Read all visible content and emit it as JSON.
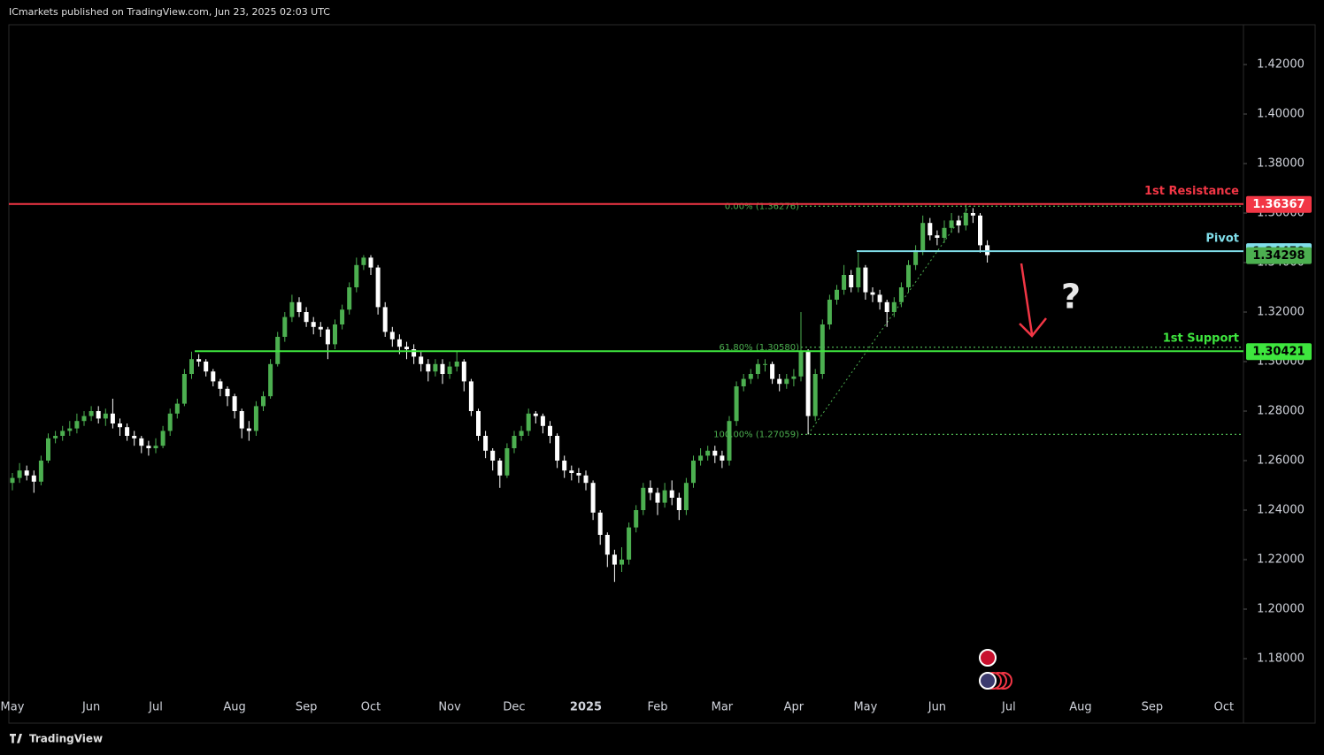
{
  "header_text": "ICmarkets published on TradingView.com, Jun 23, 2025 02:03 UTC",
  "footer_text": "TradingView",
  "chart_data": {
    "type": "candlestick",
    "up_color": "#4caf50",
    "down_color": "#ffffff",
    "ylim": [
      1.15393,
      1.43607
    ],
    "yticks": [
      {
        "value": 1.18,
        "label": "1.18000"
      },
      {
        "value": 1.2,
        "label": "1.20000"
      },
      {
        "value": 1.22,
        "label": "1.22000"
      },
      {
        "value": 1.24,
        "label": "1.24000"
      },
      {
        "value": 1.26,
        "label": "1.26000"
      },
      {
        "value": 1.28,
        "label": "1.28000"
      },
      {
        "value": 1.3,
        "label": "1.30000"
      },
      {
        "value": 1.32,
        "label": "1.32000"
      },
      {
        "value": 1.34,
        "label": "1.34000"
      },
      {
        "value": 1.36,
        "label": "1.36000"
      },
      {
        "value": 1.38,
        "label": "1.38000"
      },
      {
        "value": 1.4,
        "label": "1.40000"
      },
      {
        "value": 1.42,
        "label": "1.42000"
      }
    ],
    "categories": [
      "May",
      null,
      null,
      null,
      null,
      null,
      null,
      null,
      null,
      null,
      null,
      "Jun",
      null,
      null,
      null,
      null,
      null,
      null,
      null,
      null,
      "Jul",
      null,
      null,
      null,
      null,
      null,
      null,
      null,
      null,
      null,
      null,
      "Aug",
      null,
      null,
      null,
      null,
      null,
      null,
      null,
      null,
      null,
      "Sep",
      null,
      null,
      null,
      null,
      null,
      null,
      null,
      null,
      "Oct",
      null,
      null,
      null,
      null,
      null,
      null,
      null,
      null,
      null,
      null,
      "Nov",
      null,
      null,
      null,
      null,
      null,
      null,
      null,
      null,
      "Dec",
      null,
      null,
      null,
      null,
      null,
      null,
      null,
      null,
      null,
      "2025",
      null,
      null,
      null,
      null,
      null,
      null,
      null,
      null,
      null,
      "Feb",
      null,
      null,
      null,
      null,
      null,
      null,
      null,
      null,
      "Mar",
      null,
      null,
      null,
      null,
      null,
      null,
      null,
      null,
      null,
      "Apr",
      null,
      null,
      null,
      null,
      null,
      null,
      null,
      null,
      null,
      "May",
      null,
      null,
      null,
      null,
      null,
      null,
      null,
      null,
      null,
      "Jun",
      null,
      null,
      null,
      null,
      null,
      null,
      null,
      null,
      null,
      "Jul",
      null,
      null,
      null,
      null,
      null,
      null,
      null,
      null,
      null,
      "Aug",
      null,
      null,
      null,
      null,
      null,
      null,
      null,
      null,
      null,
      "Sep",
      null,
      null,
      null,
      null,
      null,
      null,
      null,
      null,
      null,
      "Oct"
    ],
    "open": [
      1.251,
      1.253,
      1.256,
      1.254,
      1.2515,
      1.26,
      1.269,
      1.27,
      1.272,
      1.273,
      1.276,
      1.278,
      1.28,
      1.277,
      1.279,
      1.275,
      1.2735,
      1.27,
      1.269,
      1.266,
      1.265,
      1.266,
      1.272,
      1.279,
      1.283,
      1.295,
      1.301,
      1.3,
      1.296,
      1.292,
      1.289,
      1.286,
      1.28,
      1.273,
      1.272,
      1.282,
      1.286,
      1.299,
      1.31,
      1.318,
      1.324,
      1.32,
      1.316,
      1.314,
      1.313,
      1.307,
      1.315,
      1.321,
      1.33,
      1.339,
      1.342,
      1.338,
      1.322,
      1.312,
      1.309,
      1.306,
      1.305,
      1.302,
      1.299,
      1.296,
      1.299,
      1.295,
      1.298,
      1.3,
      1.292,
      1.28,
      1.27,
      1.264,
      1.26,
      1.254,
      1.265,
      1.27,
      1.272,
      1.279,
      1.278,
      1.274,
      1.27,
      1.26,
      1.256,
      1.255,
      1.254,
      1.251,
      1.239,
      1.23,
      1.222,
      1.218,
      1.22,
      1.233,
      1.24,
      1.249,
      1.247,
      1.243,
      1.248,
      1.245,
      1.24,
      1.251,
      1.26,
      1.262,
      1.264,
      1.262,
      1.26,
      1.276,
      1.29,
      1.293,
      1.295,
      1.299,
      1.299,
      1.293,
      1.291,
      1.293,
      1.294,
      1.304,
      1.278,
      1.295,
      1.315,
      1.325,
      1.329,
      1.335,
      1.33,
      1.338,
      1.328,
      1.327,
      1.324,
      1.32,
      1.324,
      1.33,
      1.339,
      1.345,
      1.356,
      1.351,
      1.35,
      1.354,
      1.357,
      1.355,
      1.36,
      1.359,
      1.347,
      null,
      null,
      null,
      null,
      null,
      null,
      null,
      null,
      null,
      null,
      null,
      null,
      null,
      null,
      null,
      null,
      null,
      null,
      null,
      null,
      null,
      null,
      null,
      null,
      null,
      null,
      null,
      null,
      null,
      null,
      null,
      null,
      null
    ],
    "high": [
      1.255,
      1.259,
      1.258,
      1.256,
      1.262,
      1.271,
      1.272,
      1.274,
      1.276,
      1.279,
      1.28,
      1.282,
      1.282,
      1.281,
      1.285,
      1.277,
      1.275,
      1.272,
      1.27,
      1.268,
      1.269,
      1.274,
      1.281,
      1.285,
      1.297,
      1.304,
      1.303,
      1.301,
      1.297,
      1.293,
      1.29,
      1.287,
      1.281,
      1.276,
      1.284,
      1.288,
      1.301,
      1.312,
      1.32,
      1.327,
      1.326,
      1.322,
      1.318,
      1.316,
      1.314,
      1.317,
      1.323,
      1.332,
      1.342,
      1.343,
      1.343,
      1.339,
      1.324,
      1.314,
      1.311,
      1.308,
      1.307,
      1.304,
      1.301,
      1.301,
      1.301,
      1.3,
      1.304,
      1.301,
      1.293,
      1.281,
      1.272,
      1.265,
      1.261,
      1.267,
      1.272,
      1.274,
      1.281,
      1.28,
      1.279,
      1.276,
      1.271,
      1.262,
      1.258,
      1.257,
      1.256,
      1.252,
      1.24,
      1.231,
      1.224,
      1.225,
      1.235,
      1.242,
      1.251,
      1.252,
      1.249,
      1.251,
      1.252,
      1.247,
      1.253,
      1.262,
      1.265,
      1.266,
      1.266,
      1.264,
      1.278,
      1.292,
      1.295,
      1.297,
      1.301,
      1.301,
      1.3,
      1.295,
      1.295,
      1.297,
      1.32,
      1.305,
      1.297,
      1.317,
      1.327,
      1.331,
      1.339,
      1.337,
      1.344,
      1.339,
      1.33,
      1.329,
      1.325,
      1.326,
      1.332,
      1.341,
      1.347,
      1.359,
      1.358,
      1.353,
      1.357,
      1.36,
      1.359,
      1.3637,
      1.362,
      1.36,
      1.349,
      null,
      null,
      null,
      null,
      null,
      null,
      null,
      null,
      null,
      null,
      null,
      null,
      null,
      null,
      null,
      null,
      null,
      null,
      null,
      null,
      null,
      null,
      null,
      null,
      null,
      null,
      null,
      null,
      null,
      null,
      null,
      null,
      null
    ],
    "low": [
      1.248,
      1.251,
      1.252,
      1.247,
      1.25,
      1.259,
      1.267,
      1.268,
      1.27,
      1.271,
      1.274,
      1.276,
      1.275,
      1.274,
      1.273,
      1.27,
      1.268,
      1.266,
      1.263,
      1.262,
      1.263,
      1.265,
      1.27,
      1.277,
      1.282,
      1.293,
      1.298,
      1.294,
      1.29,
      1.286,
      1.282,
      1.277,
      1.269,
      1.268,
      1.27,
      1.28,
      1.285,
      1.298,
      1.308,
      1.316,
      1.318,
      1.314,
      1.311,
      1.31,
      1.301,
      1.305,
      1.313,
      1.319,
      1.328,
      1.337,
      1.335,
      1.319,
      1.31,
      1.306,
      1.303,
      1.301,
      1.299,
      1.296,
      1.292,
      1.294,
      1.291,
      1.293,
      1.296,
      1.288,
      1.278,
      1.268,
      1.261,
      1.256,
      1.249,
      1.253,
      1.263,
      1.268,
      1.27,
      1.275,
      1.271,
      1.267,
      1.257,
      1.253,
      1.252,
      1.251,
      1.248,
      1.236,
      1.226,
      1.217,
      1.211,
      1.215,
      1.218,
      1.231,
      1.238,
      1.244,
      1.238,
      1.241,
      1.242,
      1.236,
      1.238,
      1.249,
      1.258,
      1.26,
      1.259,
      1.257,
      1.258,
      1.274,
      1.288,
      1.291,
      1.293,
      1.296,
      1.291,
      1.288,
      1.289,
      1.29,
      1.292,
      1.2706,
      1.276,
      1.293,
      1.313,
      1.323,
      1.327,
      1.328,
      1.328,
      1.325,
      1.324,
      1.321,
      1.314,
      1.318,
      1.322,
      1.328,
      1.337,
      1.343,
      1.349,
      1.347,
      1.348,
      1.352,
      1.352,
      1.353,
      1.356,
      1.344,
      1.34,
      null,
      null,
      null,
      null,
      null,
      null,
      null,
      null,
      null,
      null,
      null,
      null,
      null,
      null,
      null,
      null,
      null,
      null,
      null,
      null,
      null,
      null,
      null,
      null,
      null,
      null,
      null,
      null,
      null,
      null,
      null,
      null,
      null
    ],
    "close": [
      1.253,
      1.256,
      1.254,
      1.2515,
      1.26,
      1.269,
      1.27,
      1.272,
      1.273,
      1.276,
      1.278,
      1.28,
      1.277,
      1.279,
      1.275,
      1.2735,
      1.27,
      1.269,
      1.266,
      1.265,
      1.266,
      1.272,
      1.279,
      1.283,
      1.295,
      1.301,
      1.3,
      1.296,
      1.292,
      1.289,
      1.286,
      1.28,
      1.273,
      1.272,
      1.282,
      1.286,
      1.299,
      1.31,
      1.318,
      1.324,
      1.32,
      1.316,
      1.314,
      1.313,
      1.307,
      1.315,
      1.321,
      1.33,
      1.339,
      1.342,
      1.338,
      1.322,
      1.312,
      1.309,
      1.306,
      1.305,
      1.302,
      1.299,
      1.296,
      1.299,
      1.295,
      1.298,
      1.3,
      1.292,
      1.28,
      1.27,
      1.264,
      1.26,
      1.254,
      1.265,
      1.27,
      1.272,
      1.279,
      1.278,
      1.274,
      1.27,
      1.26,
      1.256,
      1.255,
      1.254,
      1.251,
      1.239,
      1.23,
      1.222,
      1.218,
      1.22,
      1.233,
      1.24,
      1.249,
      1.247,
      1.243,
      1.248,
      1.245,
      1.24,
      1.251,
      1.26,
      1.262,
      1.264,
      1.262,
      1.26,
      1.276,
      1.29,
      1.293,
      1.295,
      1.299,
      1.299,
      1.293,
      1.291,
      1.293,
      1.294,
      1.304,
      1.278,
      1.295,
      1.315,
      1.325,
      1.329,
      1.335,
      1.33,
      1.338,
      1.328,
      1.327,
      1.324,
      1.32,
      1.324,
      1.33,
      1.339,
      1.345,
      1.356,
      1.351,
      1.35,
      1.354,
      1.357,
      1.355,
      1.36,
      1.359,
      1.347,
      1.343,
      null,
      null,
      null,
      null,
      null,
      null,
      null,
      null,
      null,
      null,
      null,
      null,
      null,
      null,
      null,
      null,
      null,
      null,
      null,
      null,
      null,
      null,
      null,
      null,
      null,
      null,
      null,
      null,
      null,
      null,
      null,
      null,
      null
    ],
    "levels": [
      {
        "name": "1st Resistance",
        "value": 1.36367,
        "color": "#f23645",
        "text_color": "#ffffff"
      },
      {
        "name": "Pivot",
        "value": 1.34459,
        "color": "#80deea",
        "text_color": "#000000"
      },
      {
        "name": "1st Support",
        "value": 1.30421,
        "color": "#3ee63e",
        "text_color": "#000000"
      }
    ],
    "last_price": 1.34298,
    "last_color": "#4caf50",
    "fib": {
      "color": "#4caf50",
      "levels": [
        {
          "value": 1.36276,
          "label": "0.00% (1.36276)"
        },
        {
          "value": 1.3058,
          "label": "61.80% (1.30580)"
        },
        {
          "value": 1.27059,
          "label": "100.00% (1.27059)"
        }
      ]
    },
    "annotation": "?"
  }
}
